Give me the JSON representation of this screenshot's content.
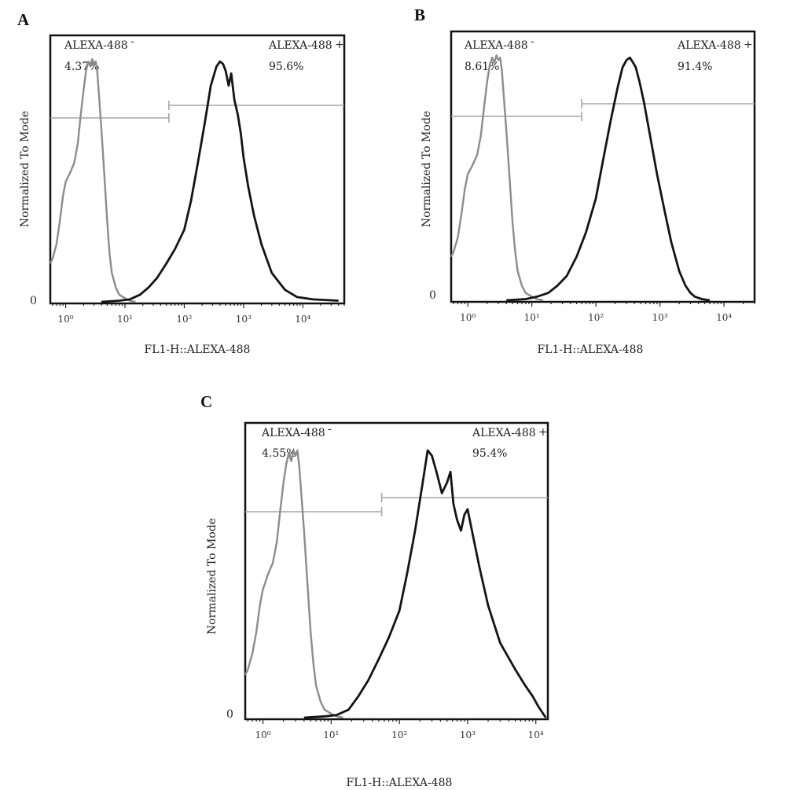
{
  "chart_data": [
    {
      "panel": "A",
      "type": "line",
      "x_scale": "log",
      "xlabel": "FL1-H::ALEXA-488",
      "ylabel": "Normalized To Mode",
      "y_zero_label": "0",
      "x_ticks": [
        {
          "value": 1,
          "label": "10⁰"
        },
        {
          "value": 10,
          "label": "10¹"
        },
        {
          "value": 100,
          "label": "10²"
        },
        {
          "value": 1000,
          "label": "10³"
        },
        {
          "value": 10000,
          "label": "10⁴"
        }
      ],
      "xlim": [
        0.55,
        50000
      ],
      "ylim": [
        0,
        105
      ],
      "gates": [
        {
          "name": "ALEXA-488-",
          "label": "ALEXA-488",
          "marker": "-",
          "percent": "4.37%",
          "range": [
            0.55,
            55
          ],
          "level": 84
        },
        {
          "name": "ALEXA-488+",
          "label": "ALEXA-488",
          "marker": "+",
          "percent": "95.6%",
          "range": [
            55,
            50000
          ],
          "level": 90
        }
      ],
      "series": [
        {
          "role": "negative",
          "color": "#8c8c8c",
          "x": [
            0.55,
            0.6,
            0.7,
            0.8,
            0.9,
            1.0,
            1.2,
            1.4,
            1.6,
            1.8,
            2.0,
            2.2,
            2.4,
            2.6,
            2.8,
            3.0,
            3.2,
            3.4,
            3.6,
            4.0,
            4.5,
            5.0,
            5.5,
            6.0,
            7.0,
            8.0,
            10,
            12,
            15
          ],
          "y": [
            16,
            18,
            24,
            34,
            44,
            50,
            54,
            58,
            66,
            78,
            88,
            96,
            100,
            98,
            101,
            99,
            100,
            96,
            88,
            72,
            52,
            34,
            20,
            12,
            6,
            3,
            1.5,
            0.5,
            0
          ]
        },
        {
          "role": "positive",
          "color": "#141414",
          "x": [
            4,
            8,
            12,
            18,
            25,
            35,
            50,
            70,
            100,
            130,
            170,
            220,
            280,
            350,
            400,
            450,
            500,
            560,
            620,
            700,
            800,
            900,
            1000,
            1200,
            1500,
            2000,
            3000,
            5000,
            8000,
            15000,
            40000
          ],
          "y": [
            0,
            0.5,
            1,
            3,
            6,
            10,
            16,
            22,
            30,
            42,
            58,
            74,
            90,
            98,
            100,
            99,
            96,
            90,
            95,
            84,
            78,
            70,
            60,
            48,
            36,
            24,
            12,
            5,
            2,
            1,
            0.5
          ]
        }
      ]
    },
    {
      "panel": "B",
      "type": "line",
      "x_scale": "log",
      "xlabel": "FL1-H::ALEXA-488",
      "ylabel": "Normalized To Mode",
      "y_zero_label": "0",
      "x_ticks": [
        {
          "value": 1,
          "label": "10⁰"
        },
        {
          "value": 10,
          "label": "10¹"
        },
        {
          "value": 100,
          "label": "10²"
        },
        {
          "value": 1000,
          "label": "10³"
        },
        {
          "value": 10000,
          "label": "10⁴"
        }
      ],
      "xlim": [
        0.55,
        30000
      ],
      "ylim": [
        0,
        105
      ],
      "gates": [
        {
          "name": "ALEXA-488-",
          "label": "ALEXA-488",
          "marker": "-",
          "percent": "8.61%",
          "range": [
            0.55,
            60
          ],
          "level": 84
        },
        {
          "name": "ALEXA-488+",
          "label": "ALEXA-488",
          "marker": "+",
          "percent": "91.4%",
          "range": [
            60,
            30000
          ],
          "level": 90
        }
      ],
      "series": [
        {
          "role": "negative",
          "color": "#8c8c8c",
          "x": [
            0.55,
            0.6,
            0.7,
            0.8,
            0.9,
            1.0,
            1.2,
            1.4,
            1.6,
            1.8,
            2.0,
            2.2,
            2.4,
            2.6,
            2.8,
            3.0,
            3.2,
            3.4,
            3.6,
            4.0,
            4.5,
            5.0,
            5.5,
            6.0,
            7.0,
            8.0,
            10,
            12,
            15
          ],
          "y": [
            18,
            20,
            26,
            36,
            46,
            52,
            56,
            60,
            68,
            80,
            90,
            97,
            100,
            98,
            101,
            99,
            100,
            95,
            86,
            70,
            50,
            32,
            20,
            12,
            6,
            3,
            1.5,
            0.5,
            0
          ]
        },
        {
          "role": "positive",
          "color": "#141414",
          "x": [
            4,
            8,
            12,
            18,
            25,
            35,
            50,
            70,
            100,
            130,
            170,
            220,
            260,
            300,
            340,
            380,
            420,
            480,
            560,
            700,
            900,
            1200,
            1500,
            2000,
            2500,
            3000,
            3500,
            4500,
            6000
          ],
          "y": [
            0,
            0.5,
            1.5,
            3,
            6,
            10,
            18,
            28,
            42,
            58,
            74,
            88,
            96,
            99,
            100,
            98,
            96,
            90,
            82,
            68,
            52,
            36,
            24,
            12,
            6,
            3,
            1.5,
            0.5,
            0
          ]
        }
      ]
    },
    {
      "panel": "C",
      "type": "line",
      "x_scale": "log",
      "xlabel": "FL1-H::ALEXA-488",
      "ylabel": "Normalized To Mode",
      "y_zero_label": "0",
      "x_ticks": [
        {
          "value": 1,
          "label": "10⁰"
        },
        {
          "value": 10,
          "label": "10¹"
        },
        {
          "value": 100,
          "label": "10²"
        },
        {
          "value": 1000,
          "label": "10³"
        },
        {
          "value": 10000,
          "label": "10⁴"
        }
      ],
      "xlim": [
        0.55,
        15000
      ],
      "ylim": [
        0,
        105
      ],
      "gates": [
        {
          "name": "ALEXA-488-",
          "label": "ALEXA-488",
          "marker": "-",
          "percent": "4.55%",
          "range": [
            0.55,
            55
          ],
          "level": 84
        },
        {
          "name": "ALEXA-488+",
          "label": "ALEXA-488",
          "marker": "+",
          "percent": "95.4%",
          "range": [
            55,
            15000
          ],
          "level": 90
        }
      ],
      "series": [
        {
          "role": "negative",
          "color": "#8c8c8c",
          "x": [
            0.55,
            0.6,
            0.7,
            0.8,
            0.9,
            1.0,
            1.2,
            1.4,
            1.6,
            1.8,
            2.0,
            2.2,
            2.4,
            2.6,
            2.8,
            3.0,
            3.2,
            3.4,
            3.6,
            4.0,
            4.5,
            5.0,
            5.5,
            6.0,
            7.0,
            8.0,
            10,
            12,
            15
          ],
          "y": [
            16,
            18,
            24,
            32,
            42,
            48,
            54,
            58,
            66,
            78,
            88,
            95,
            99,
            96,
            100,
            98,
            100,
            94,
            86,
            70,
            50,
            32,
            20,
            12,
            6,
            3,
            1.5,
            0.5,
            0
          ]
        },
        {
          "role": "positive",
          "color": "#141414",
          "x": [
            4,
            8,
            12,
            18,
            25,
            35,
            50,
            70,
            100,
            130,
            170,
            220,
            260,
            300,
            350,
            420,
            500,
            560,
            620,
            700,
            800,
            900,
            1000,
            1200,
            1500,
            2000,
            3000,
            5000,
            7000,
            9000,
            11000,
            14000
          ],
          "y": [
            0,
            0.5,
            1,
            3,
            8,
            14,
            22,
            30,
            40,
            54,
            70,
            88,
            100,
            98,
            92,
            84,
            88,
            92,
            80,
            74,
            70,
            76,
            78,
            68,
            56,
            42,
            28,
            18,
            12,
            8,
            4,
            0
          ]
        }
      ]
    }
  ]
}
